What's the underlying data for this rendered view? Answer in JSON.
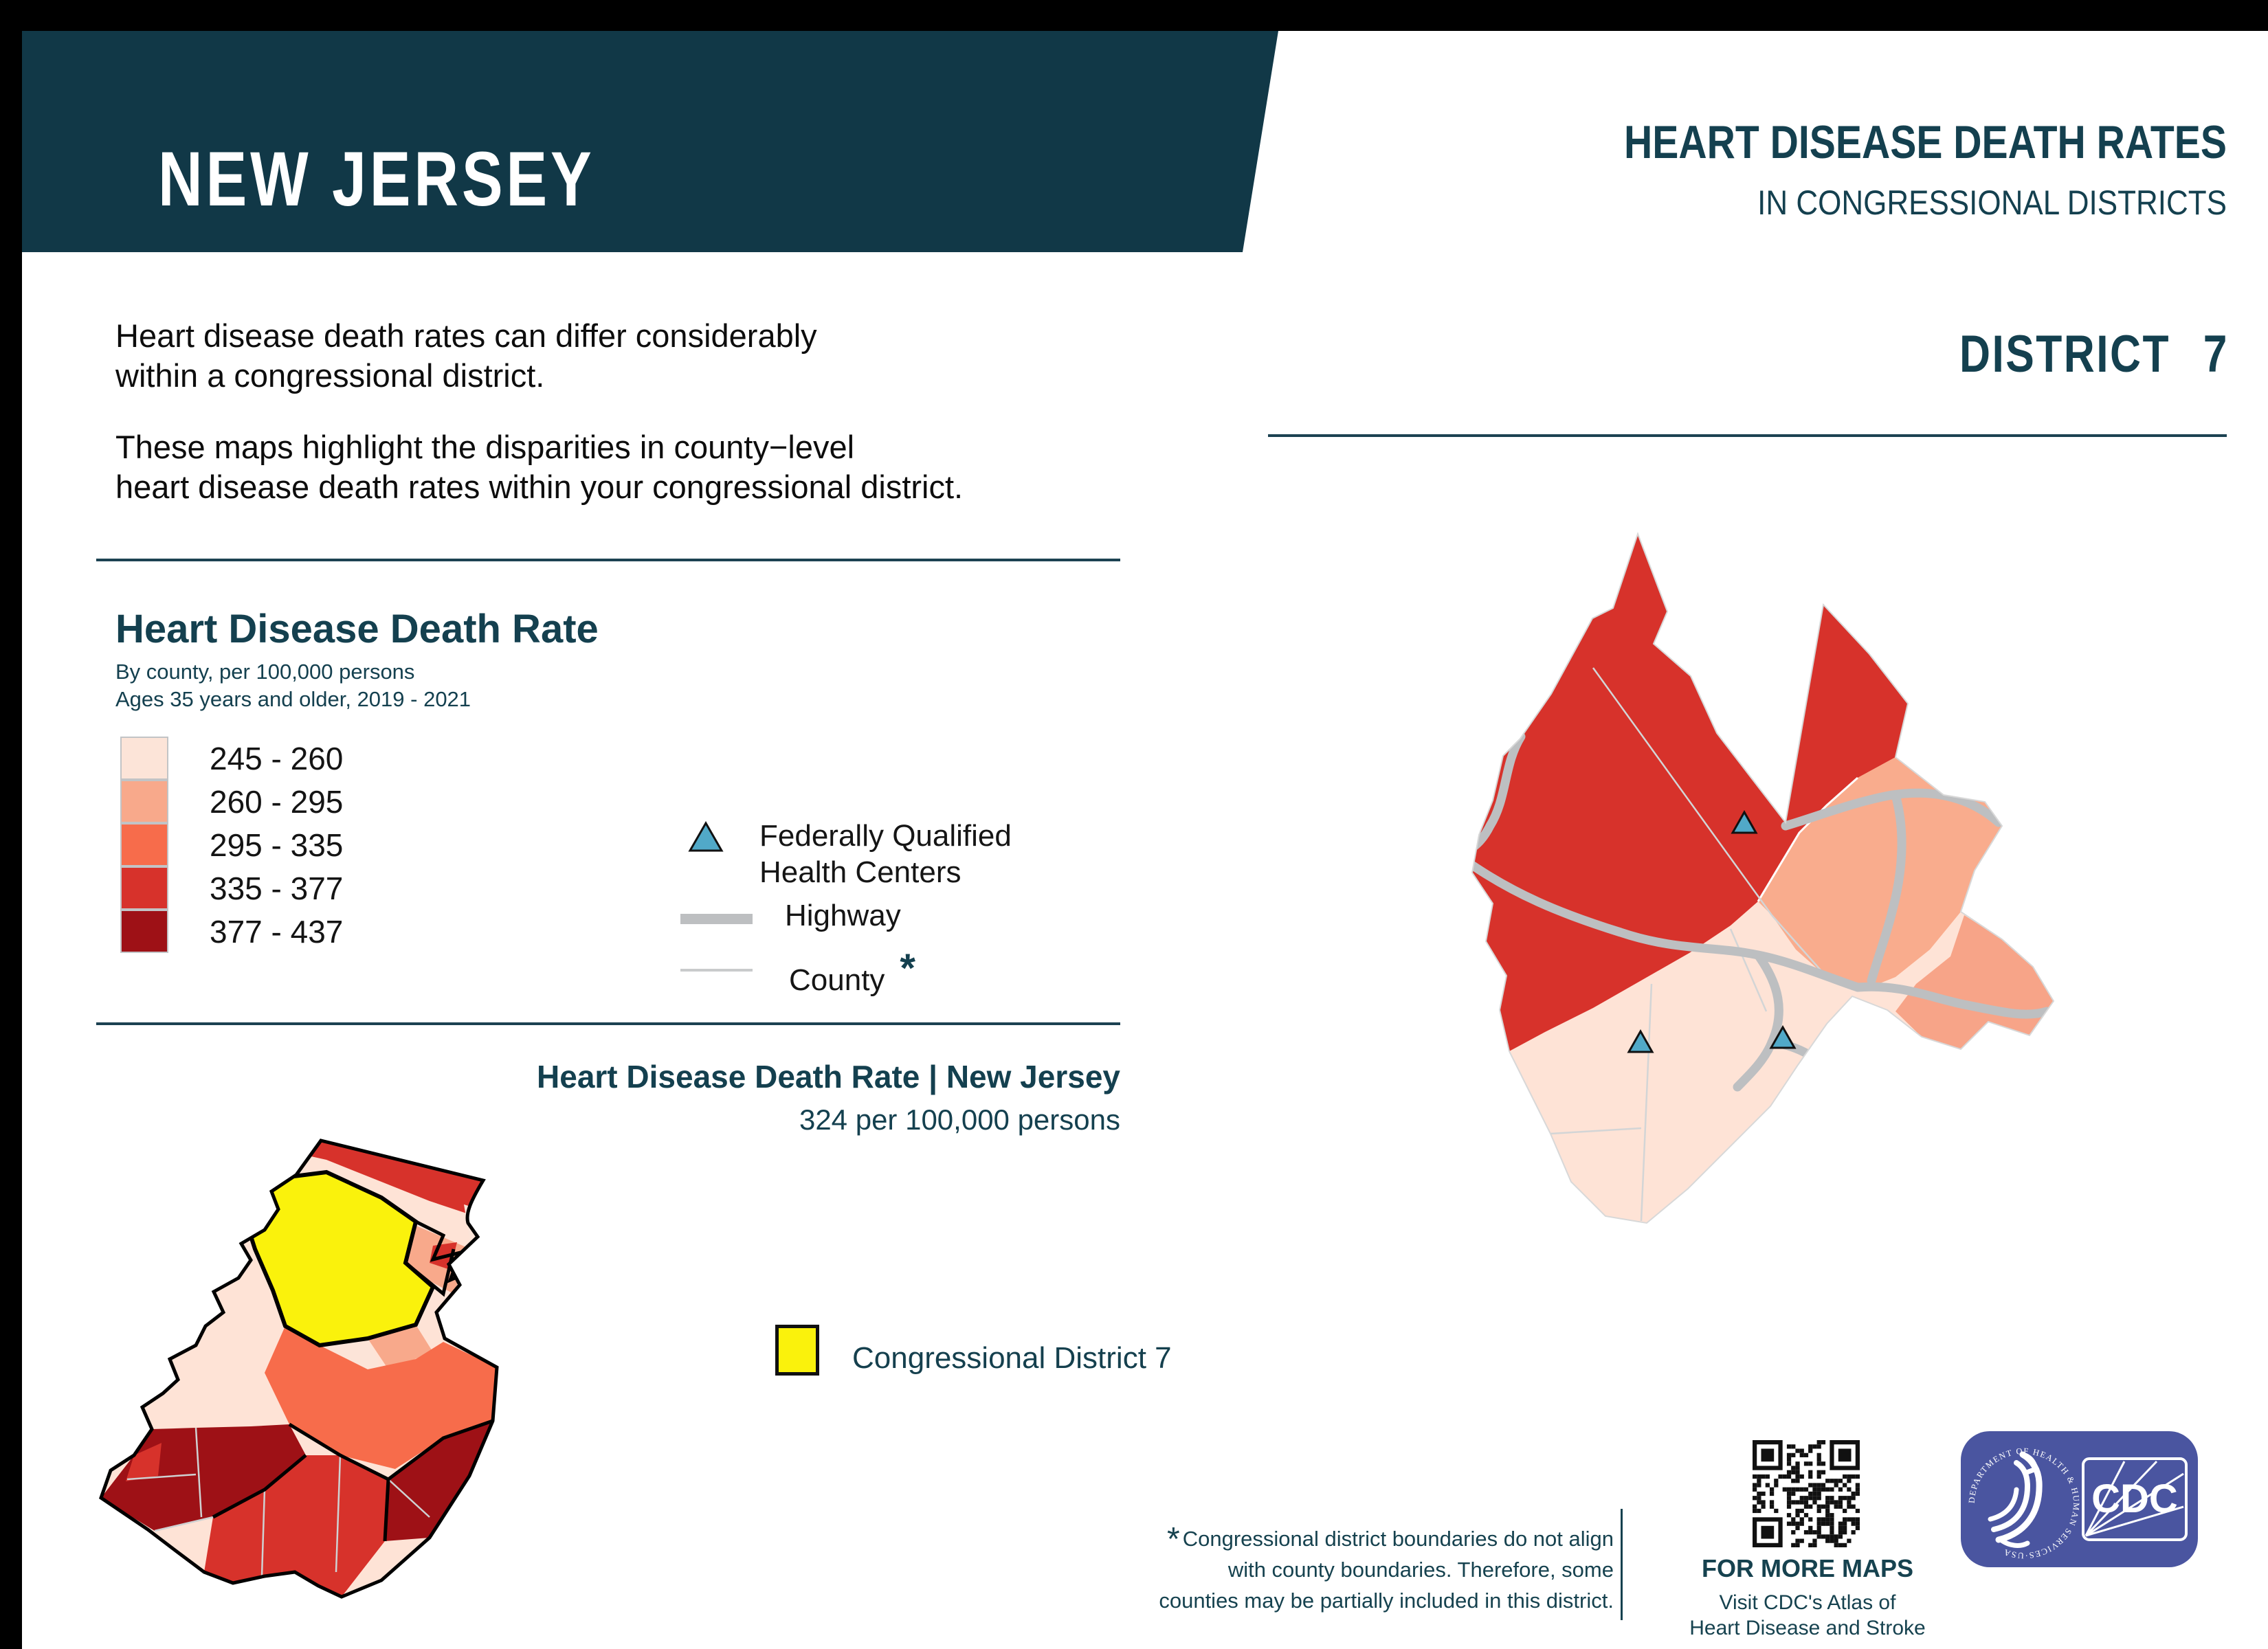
{
  "page": {
    "background": "#ffffff",
    "frame_color": "#000000",
    "band_color": "#113847",
    "text_teal": "#14404F"
  },
  "header": {
    "state": "NEW JERSEY",
    "title_line1": "HEART DISEASE DEATH RATES",
    "title_line2": "IN CONGRESSIONAL DISTRICTS"
  },
  "district_header": {
    "label": "DISTRICT 7"
  },
  "intro": {
    "p1_line1": "Heart disease death rates can differ considerably",
    "p1_line2": "within a congressional district.",
    "p2_line1": "These maps highlight the disparities in county−level",
    "p2_line2": "heart disease death rates within your congressional district."
  },
  "legend": {
    "title": "Heart Disease Death Rate",
    "subtitle_line1": "By county, per 100,000 persons",
    "subtitle_line2": "Ages 35 years and older, 2019 - 2021",
    "classes": [
      {
        "range": "245 - 260",
        "color": "#FCE4D8"
      },
      {
        "range": "260 - 295",
        "color": "#F8A98B"
      },
      {
        "range": "295 - 335",
        "color": "#F76C4B"
      },
      {
        "range": "335 - 377",
        "color": "#D7322B"
      },
      {
        "range": "377 - 437",
        "color": "#9E1116"
      }
    ],
    "symbols": {
      "fqhc_line1": "Federally Qualified",
      "fqhc_line2": "Health Centers",
      "fqhc_color": "#51A9C8",
      "highway_label": "Highway",
      "highway_color": "#BDBFC1",
      "county_label": "County",
      "county_asterisk": "*",
      "county_line_color": "#C9CBCC"
    }
  },
  "state_map": {
    "title": "Heart Disease Death Rate | New Jersey",
    "subtitle": "324 per 100,000 persons",
    "district_legend_label": "Congressional District 7",
    "district_color": "#FAF20C",
    "fqhc_markers_on_district_map": 3
  },
  "footnote": {
    "asterisk": "*",
    "line1": "Congressional district boundaries do not align",
    "line2": "with county boundaries. Therefore, some",
    "line3": "counties may be partially included in this district."
  },
  "more_maps": {
    "heading": "FOR MORE MAPS",
    "line1": "Visit CDC's Atlas of",
    "line2": "Heart Disease and Stroke"
  },
  "logos": {
    "badge_color": "#4A55A0",
    "cdc_text": "CDC",
    "hhs_ring_text": "DEPARTMENT OF HEALTH & HUMAN SERVICES·USA"
  }
}
